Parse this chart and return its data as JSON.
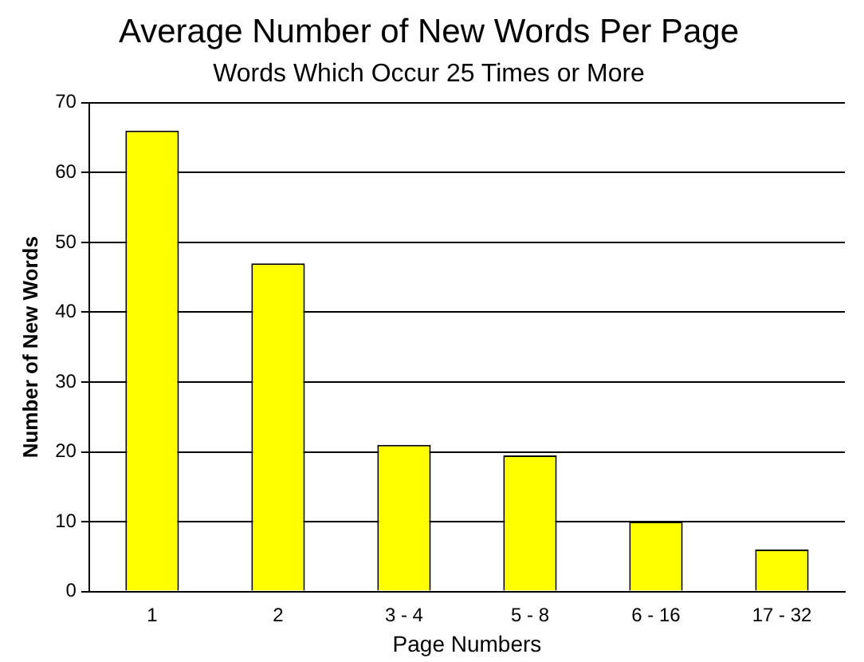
{
  "chart_data": {
    "type": "bar",
    "title": "Average Number of New Words Per Page",
    "subtitle": "Words Which Occur 25 Times or More",
    "xlabel": "Page Numbers",
    "ylabel": "Number of New Words",
    "categories": [
      "1",
      "2",
      "3 - 4",
      "5 - 8",
      "6 - 16",
      "17 - 32"
    ],
    "values": [
      66,
      47,
      21,
      19.5,
      10,
      6
    ],
    "color": "#ffff00",
    "ylim": [
      0,
      70
    ],
    "yticks": [
      0,
      10,
      20,
      30,
      40,
      50,
      60,
      70
    ],
    "grid": "y"
  }
}
